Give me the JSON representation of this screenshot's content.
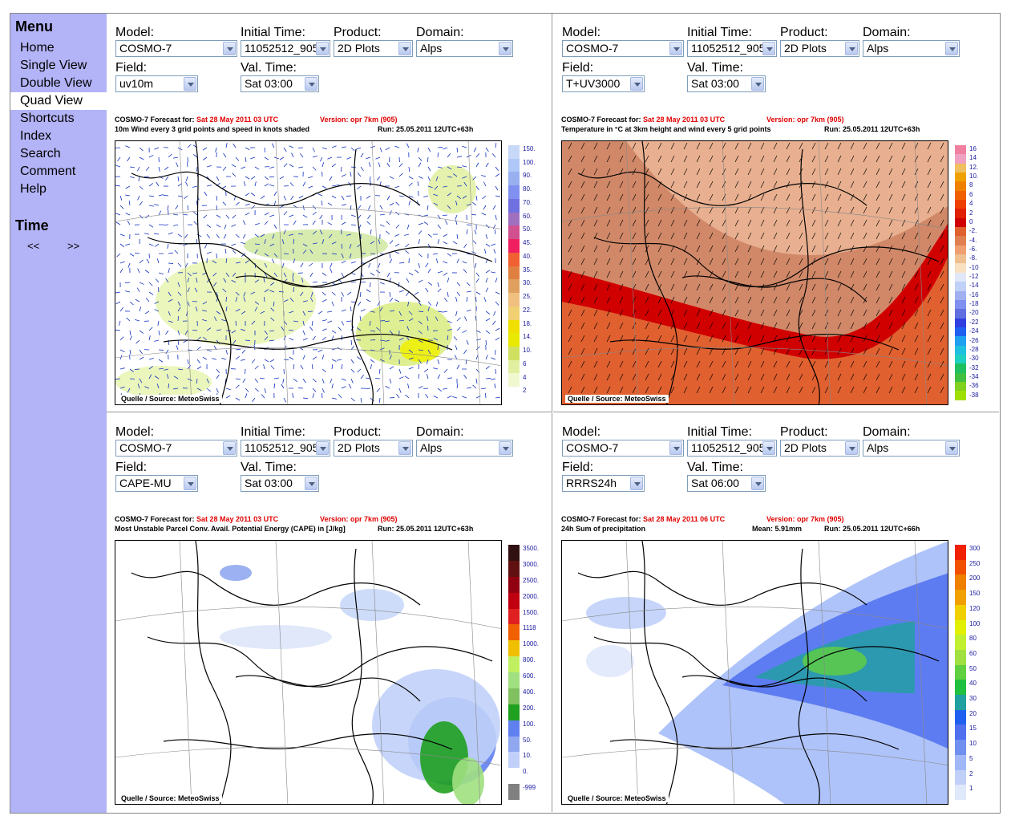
{
  "menu": {
    "title": "Menu",
    "items": [
      "Home",
      "Single View",
      "Double View",
      "Quad View",
      "Shortcuts",
      "Index",
      "Search",
      "Comment",
      "Help"
    ],
    "active": "Quad View",
    "time_title": "Time",
    "prev": "<<",
    "next": ">>"
  },
  "labels": {
    "model": "Model:",
    "initial_time": "Initial Time:",
    "product": "Product:",
    "domain": "Domain:",
    "field": "Field:",
    "val_time": "Val. Time:"
  },
  "source": "Quelle / Source: MeteoSwiss",
  "panels": [
    {
      "model": "COSMO-7",
      "initial_time": "11052512_905",
      "product": "2D Plots",
      "domain": "Alps",
      "field": "uv10m",
      "val_time": "Sat 03:00",
      "forecast_for": "COSMO-7 Forecast for:",
      "date": "Sat 28 May 2011 03 UTC",
      "version": "Version: opr 7km (905)",
      "desc": "10m Wind every 3 grid points and speed in knots shaded",
      "mean": "",
      "run": "Run: 25.05.2011 12UTC+63h",
      "scale": [
        "150.",
        "100.",
        "90.",
        "80.",
        "70.",
        "60.",
        "50.",
        "45.",
        "40.",
        "35.",
        "30.",
        "25.",
        "22.",
        "18.",
        "14.",
        "10.",
        "6",
        "4",
        "2"
      ],
      "colors": [
        "#c8d8f8",
        "#b0c8f8",
        "#98b0f0",
        "#8090f0",
        "#7070e0",
        "#a070c0",
        "#d05090",
        "#f02060",
        "#f06030",
        "#e08040",
        "#e0a060",
        "#f0c080",
        "#f0d070",
        "#f0e000",
        "#e8e800",
        "#d0e060",
        "#e0f0a0",
        "#f0f8d0",
        "#ffffff"
      ]
    },
    {
      "model": "COSMO-7",
      "initial_time": "11052512_905",
      "product": "2D Plots",
      "domain": "Alps",
      "field": "T+UV3000",
      "val_time": "Sat 03:00",
      "forecast_for": "COSMO-7 Forecast for:",
      "date": "Sat 28 May 2011 03 UTC",
      "version": "Version: opr 7km (905)",
      "desc": "Temperature in °C at 3km height and wind every 5 grid points",
      "mean": "",
      "run": "Run: 25.05.2011 12UTC+63h",
      "scale": [
        "16",
        "14",
        "12.",
        "10.",
        "8",
        "6",
        "4",
        "2",
        "0",
        "-2.",
        "-4.",
        "-6.",
        "-8.",
        "-10",
        "-12",
        "-14",
        "-16",
        "-18",
        "-20",
        "-22",
        "-24",
        "-26",
        "-28",
        "-30",
        "-32",
        "-34",
        "-36",
        "-38"
      ],
      "colors": [
        "#f080a0",
        "#f0a0c0",
        "#f0c060",
        "#f0a000",
        "#f08000",
        "#f06000",
        "#f04000",
        "#e02000",
        "#d00000",
        "#e06030",
        "#e08050",
        "#f0a070",
        "#f0c090",
        "#f8e0c0",
        "#e0e8f8",
        "#c0d0f8",
        "#a0b0f0",
        "#8090f0",
        "#6070e0",
        "#3040e0",
        "#2060f0",
        "#20a0f0",
        "#20c0e0",
        "#20d0c0",
        "#20c060",
        "#40c040",
        "#80d020",
        "#a0e000"
      ]
    },
    {
      "model": "COSMO-7",
      "initial_time": "11052512_905",
      "product": "2D Plots",
      "domain": "Alps",
      "field": "CAPE-MU",
      "val_time": "Sat 03:00",
      "forecast_for": "COSMO-7 Forecast for:",
      "date": "Sat 28 May 2011 03 UTC",
      "version": "Version: opr 7km (905)",
      "desc": "Most Unstable Parcel Conv. Avail. Potential Energy (CAPE) in [J/kg]",
      "mean": "",
      "run": "Run: 25.05.2011 12UTC+63h",
      "scale": [
        "3500.",
        "3000.",
        "2500.",
        "2000.",
        "1500.",
        "1118",
        "1000.",
        "800.",
        "600.",
        "400.",
        "200.",
        "100.",
        "50.",
        "10.",
        "0.",
        "-999"
      ],
      "colors": [
        "#301010",
        "#601010",
        "#900010",
        "#c00010",
        "#e02020",
        "#f06000",
        "#f0c000",
        "#c0f060",
        "#a0e080",
        "#80c060",
        "#20a020",
        "#6080f0",
        "#90a8f0",
        "#c0d0f8",
        "#ffffff",
        "#808080"
      ]
    },
    {
      "model": "COSMO-7",
      "initial_time": "11052512_905",
      "product": "2D Plots",
      "domain": "Alps",
      "field": "RRRS24h",
      "val_time": "Sat 06:00",
      "forecast_for": "COSMO-7 Forecast for:",
      "date": "Sat 28 May 2011 06 UTC",
      "version": "Version: opr 7km (905)",
      "desc": "24h Sum of precipitation",
      "mean": "Mean: 5.91mm",
      "run": "Run: 25.05.2011 12UTC+66h",
      "scale": [
        "300",
        "250",
        "200",
        "150",
        "120",
        "100",
        "80",
        "60",
        "50",
        "40",
        "30",
        "20",
        "15",
        "10",
        "5",
        "2",
        "1"
      ],
      "colors": [
        "#f02000",
        "#f05000",
        "#f08000",
        "#f0a000",
        "#f0d000",
        "#e0f000",
        "#c0f030",
        "#a0e040",
        "#60d040",
        "#20c040",
        "#20a0a0",
        "#2060f0",
        "#5070f0",
        "#7090f0",
        "#a0b8f8",
        "#c0d0f8",
        "#e0e8fc"
      ]
    }
  ]
}
